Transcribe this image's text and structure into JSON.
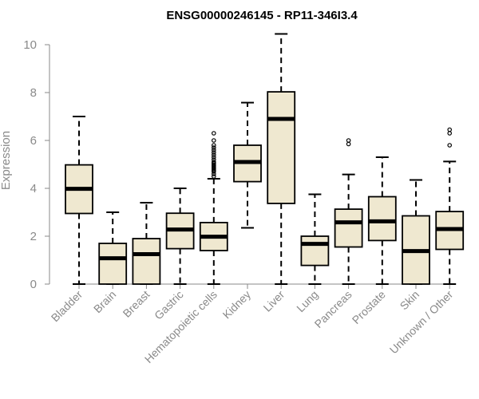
{
  "chart_data": {
    "type": "boxplot",
    "title": "ENSG00000246145 - RP11-346I3.4",
    "xlabel": "",
    "ylabel": "Expression",
    "ylim": [
      0,
      10.5
    ],
    "yticks": [
      0,
      2,
      4,
      6,
      8,
      10
    ],
    "box_fill": "#efe8d0",
    "line_color": "#000000",
    "axis_color": "#8a8a8a",
    "categories": [
      "Bladder",
      "Brain",
      "Breast",
      "Gastric",
      "Hematopoietic cells",
      "Kidney",
      "Liver",
      "Lung",
      "Pancreas",
      "Prostate",
      "Skin",
      "Unknown / Other"
    ],
    "boxes": [
      {
        "category": "Bladder",
        "min": 0,
        "q1": 2.95,
        "median": 3.98,
        "q3": 4.98,
        "max": 7.0,
        "outliers": []
      },
      {
        "category": "Brain",
        "min": 0,
        "q1": 0,
        "median": 1.08,
        "q3": 1.7,
        "max": 3.0,
        "outliers": []
      },
      {
        "category": "Breast",
        "min": 0,
        "q1": 0,
        "median": 1.25,
        "q3": 1.9,
        "max": 3.4,
        "outliers": []
      },
      {
        "category": "Gastric",
        "min": 0,
        "q1": 1.48,
        "median": 2.28,
        "q3": 2.96,
        "max": 4.0,
        "outliers": []
      },
      {
        "category": "Hematopoietic cells",
        "min": 0,
        "q1": 1.4,
        "median": 1.98,
        "q3": 2.57,
        "max": 4.4,
        "outliers": [
          4.5,
          4.6,
          4.7,
          4.75,
          4.8,
          4.85,
          4.9,
          4.95,
          5.0,
          5.05,
          5.1,
          5.2,
          5.3,
          5.4,
          5.5,
          5.6,
          5.7,
          5.8,
          6.0,
          6.3
        ]
      },
      {
        "category": "Kidney",
        "min": 2.35,
        "q1": 4.28,
        "median": 5.1,
        "q3": 5.8,
        "max": 7.58,
        "outliers": []
      },
      {
        "category": "Liver",
        "min": 0,
        "q1": 3.37,
        "median": 6.9,
        "q3": 8.03,
        "max": 10.45,
        "outliers": []
      },
      {
        "category": "Lung",
        "min": 0,
        "q1": 0.78,
        "median": 1.68,
        "q3": 2.0,
        "max": 3.75,
        "outliers": []
      },
      {
        "category": "Pancreas",
        "min": 0,
        "q1": 1.55,
        "median": 2.58,
        "q3": 3.13,
        "max": 4.58,
        "outliers": [
          5.85,
          6.0
        ]
      },
      {
        "category": "Prostate",
        "min": 0,
        "q1": 1.82,
        "median": 2.62,
        "q3": 3.65,
        "max": 5.3,
        "outliers": []
      },
      {
        "category": "Skin",
        "min": 0,
        "q1": 0,
        "median": 1.38,
        "q3": 2.85,
        "max": 4.35,
        "outliers": []
      },
      {
        "category": "Unknown / Other",
        "min": 0,
        "q1": 1.45,
        "median": 2.3,
        "q3": 3.03,
        "max": 5.12,
        "outliers": [
          5.8,
          6.3,
          6.45
        ]
      }
    ]
  }
}
